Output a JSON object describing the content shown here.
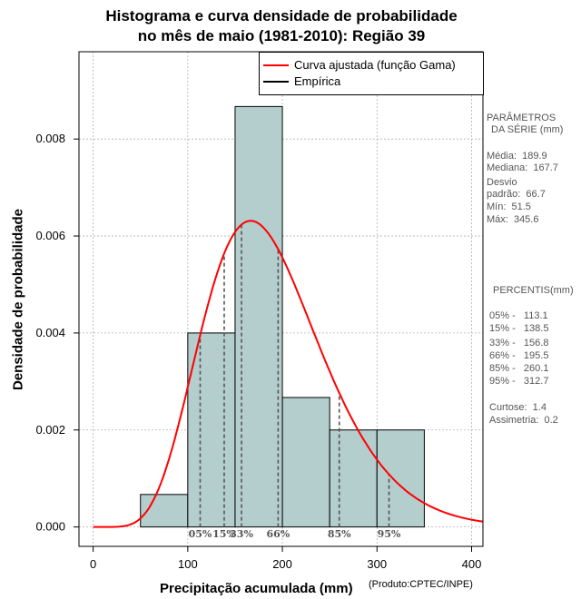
{
  "title_line1": "Histograma e curva densidade de probabilidade",
  "title_line2": "no mês de maio (1981-2010): Região 39",
  "credit": "(Produto:CPTEC/INPE)",
  "legend": {
    "fitted_label": "Curva ajustada (função Gama)",
    "empirical_label": "Empírica"
  },
  "params": {
    "header1": "PARÂMETROS",
    "header2": "DA SÉRIE (mm)",
    "media": "Média:  189.9",
    "mediana": "Mediana:  167.7",
    "desvio1": "Desvio",
    "desvio2": "padrão:  66.7",
    "min": "Mín:  51.5",
    "max": "Máx:  345.6"
  },
  "percentis": {
    "header": "PERCENTIS(mm)",
    "p05": "05% -   113.1",
    "p15": "15% -   138.5",
    "p33": "33% -   156.8",
    "p66": "66% -   195.5",
    "p85": "85% -   260.1",
    "p95": "95% -   312.7",
    "curtose": "Curtose:  1.4",
    "assimetria": "Assimetria:  0.2"
  },
  "chart_data": {
    "type": "bar",
    "title": "Histograma e curva densidade de probabilidade no mês de maio (1981-2010): Região 39",
    "xlabel": "Precipitação acumulada (mm)",
    "ylabel": "Densidade de probabilidade",
    "xlim": [
      -15,
      412
    ],
    "ylim": [
      -0.0004,
      0.0098
    ],
    "xticks": [
      0,
      100,
      200,
      300,
      400
    ],
    "yticks": [
      0.0,
      0.002,
      0.004,
      0.006,
      0.008
    ],
    "ytick_labels": [
      "0.000",
      "0.002",
      "0.004",
      "0.006",
      "0.008"
    ],
    "grid": true,
    "legend_position": "top-right",
    "bins": [
      {
        "x0": 50,
        "x1": 100,
        "density": 0.00067
      },
      {
        "x0": 100,
        "x1": 150,
        "density": 0.004
      },
      {
        "x0": 150,
        "x1": 200,
        "density": 0.00867
      },
      {
        "x0": 200,
        "x1": 250,
        "density": 0.00267
      },
      {
        "x0": 250,
        "x1": 300,
        "density": 0.002
      },
      {
        "x0": 300,
        "x1": 350,
        "density": 0.002
      }
    ],
    "gamma_fit": {
      "shape": 8.1,
      "scale": 23.44
    },
    "percentiles": [
      {
        "label": "05%",
        "value": 113.1
      },
      {
        "label": "15%",
        "value": 138.5
      },
      {
        "label": "33%",
        "value": 156.8
      },
      {
        "label": "66%",
        "value": 195.5
      },
      {
        "label": "85%",
        "value": 260.1
      },
      {
        "label": "95%",
        "value": 312.7
      }
    ],
    "colors": {
      "bar_fill": "#b4cdcd",
      "fitted_curve": "#ff0000",
      "empirical": "#000000",
      "percentile_line": "#555555"
    }
  }
}
